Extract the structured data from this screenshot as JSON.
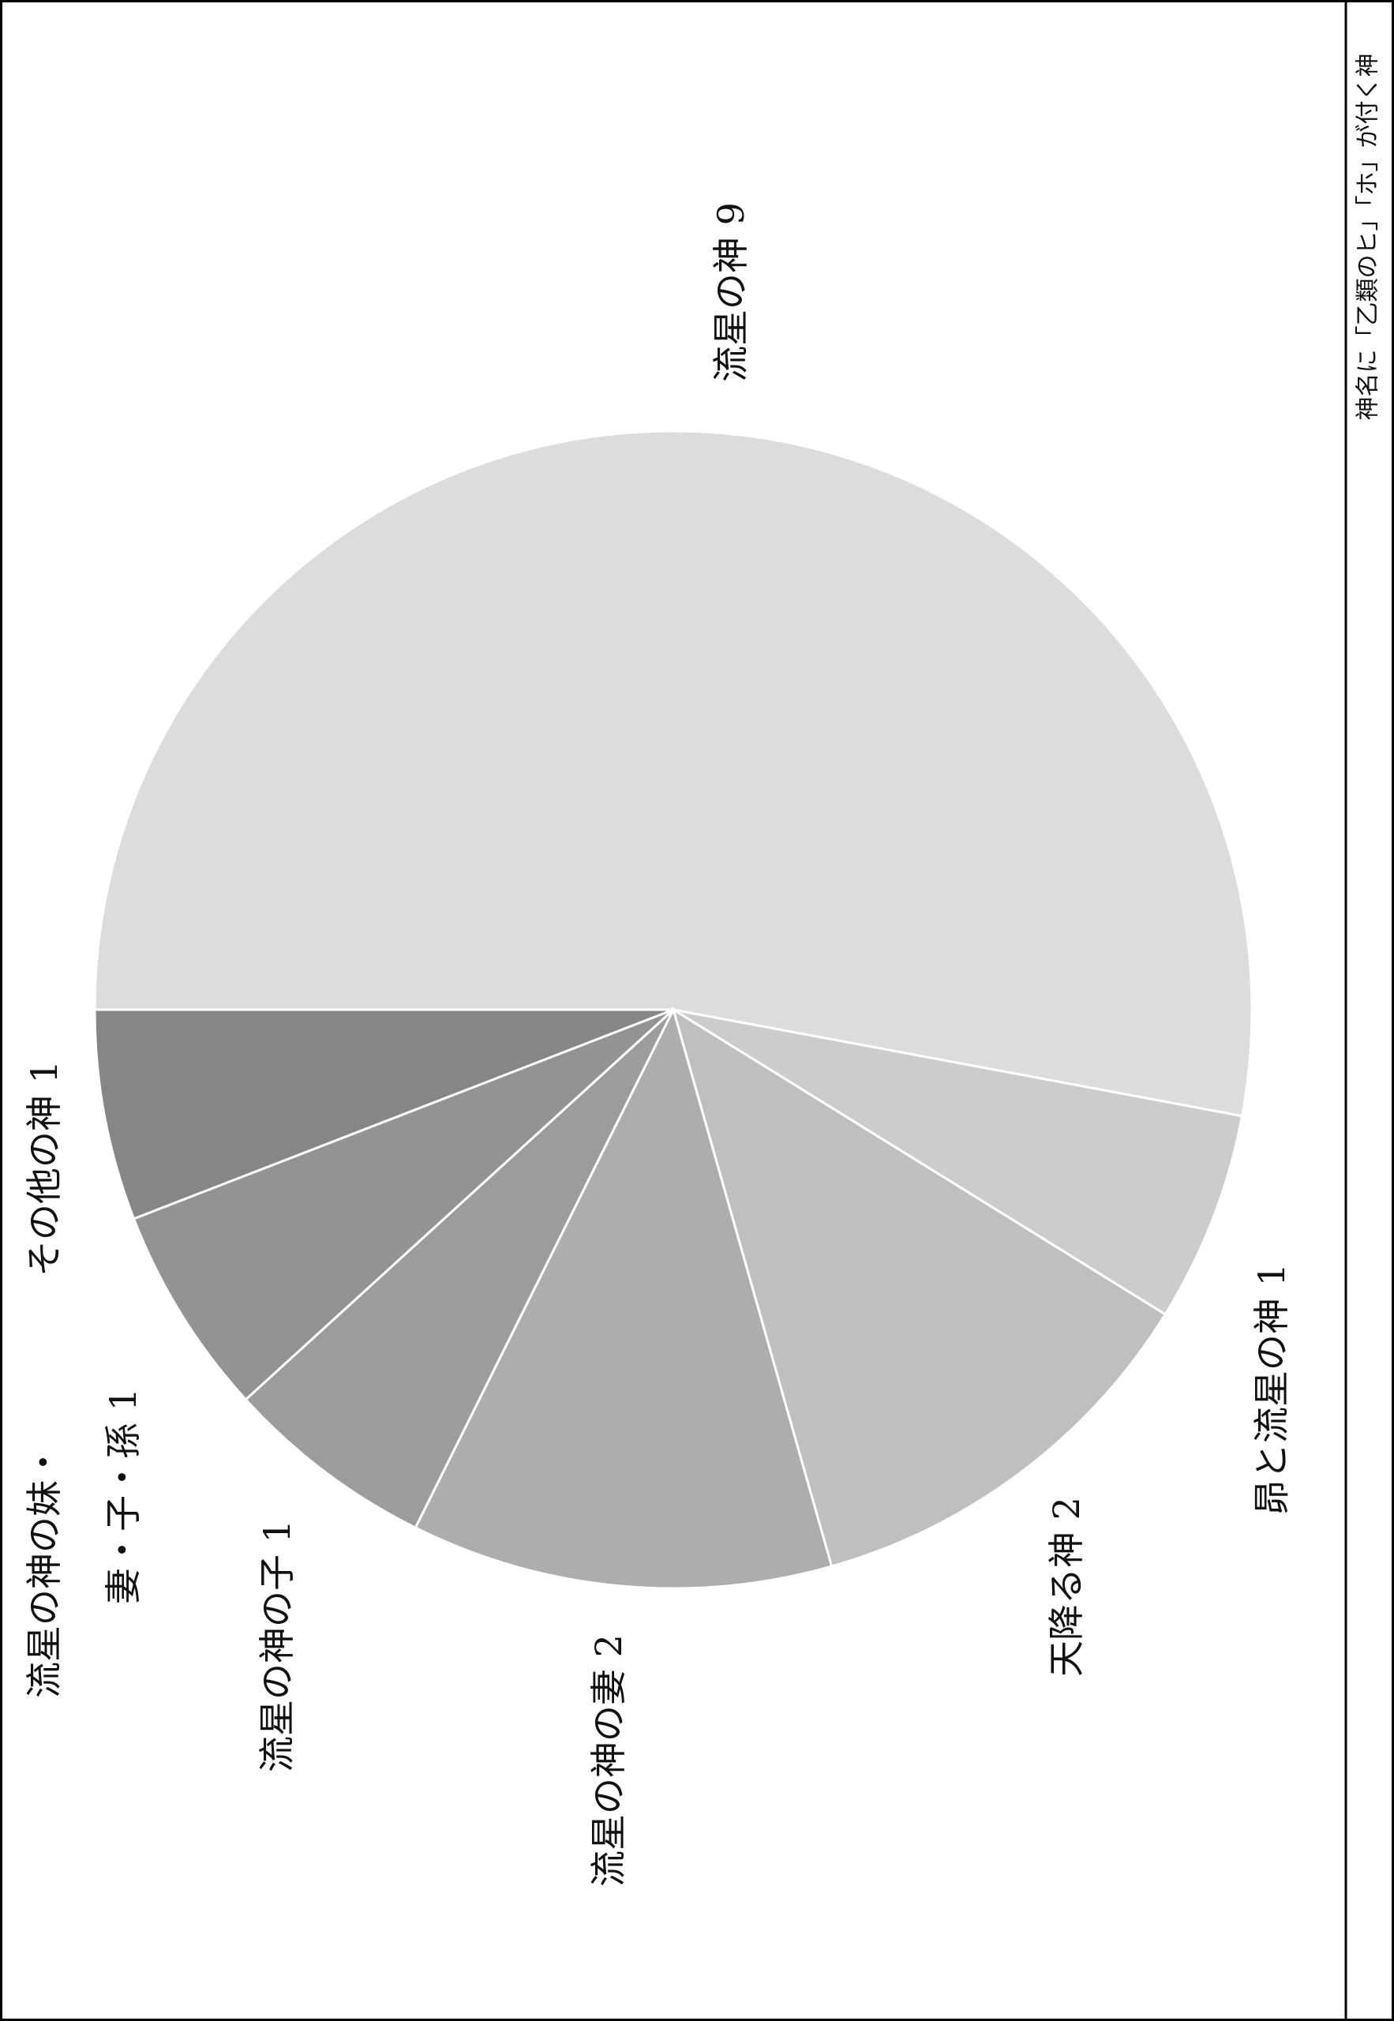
{
  "title": "神名に「乙類のヒ」「ホ」が付く神",
  "chart_data": {
    "type": "pie",
    "title": "神名に「乙類のヒ」「ホ」が付く神",
    "slices": [
      {
        "label": "流星の神",
        "value": 9,
        "color": "#dcdcdc"
      },
      {
        "label": "昴と流星の神",
        "value": 1,
        "color": "#cccccc"
      },
      {
        "label": "天降る神",
        "value": 2,
        "color": "#bfbfbf"
      },
      {
        "label": "流星の神の妻",
        "value": 2,
        "color": "#adadad"
      },
      {
        "label": "流星の神の子",
        "value": 1,
        "color": "#9c9c9c"
      },
      {
        "label": "流星の神の妹・妻・子・孫",
        "value": 1,
        "color": "#939393"
      },
      {
        "label": "その他の神",
        "value": 1,
        "color": "#868686"
      }
    ],
    "labels_text": [
      {
        "line": "流星の神 9"
      },
      {
        "line": "昴と流星の神 1"
      },
      {
        "line": "天降る神 2"
      },
      {
        "line": "流星の神の妻 2"
      },
      {
        "line": "流星の神の子 1"
      },
      {
        "line": "流星の神の妹・",
        "line2": "妻・子・孫 1"
      },
      {
        "line": "その他の神 1"
      }
    ]
  }
}
